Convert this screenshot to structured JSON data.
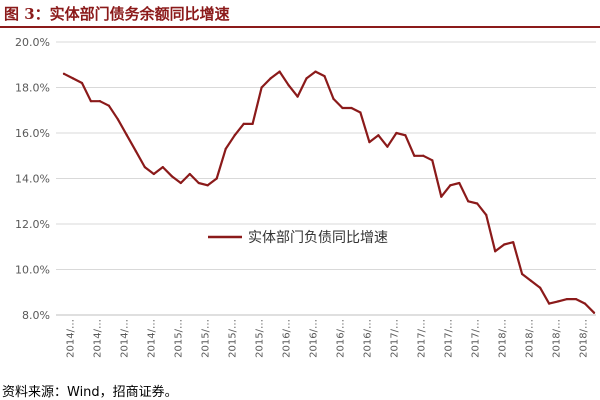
{
  "header": {
    "title": "图 3：实体部门债务余额同比增速"
  },
  "footer": {
    "source": "资料来源：Wind，招商证券。"
  },
  "chart_data": {
    "type": "line",
    "title": "",
    "xlabel": "",
    "ylabel": "",
    "ylim": [
      8,
      20
    ],
    "y_ticks": [
      "8.0%",
      "10.0%",
      "12.0%",
      "14.0%",
      "16.0%",
      "18.0%",
      "20.0%"
    ],
    "x_tick_labels": [
      "2014/…",
      "2014/…",
      "2014/…",
      "2014/…",
      "2015/…",
      "2015/…",
      "2015/…",
      "2015/…",
      "2016/…",
      "2016/…",
      "2016/…",
      "2016/…",
      "2017/…",
      "2017/…",
      "2017/…",
      "2017/…",
      "2018/…",
      "2018/…",
      "2018/…",
      "2018/…"
    ],
    "grid": "horizontal",
    "legend_position": "center-right",
    "line_color": "#8B1A1A",
    "series": [
      {
        "name": "实体部门负债同比增速",
        "values": [
          18.6,
          18.4,
          18.2,
          17.4,
          17.4,
          17.2,
          16.6,
          15.9,
          15.2,
          14.5,
          14.2,
          14.5,
          14.1,
          13.8,
          14.2,
          13.8,
          13.7,
          14.0,
          15.3,
          15.9,
          16.4,
          16.4,
          18.0,
          18.4,
          18.7,
          18.1,
          17.6,
          18.4,
          18.7,
          18.5,
          17.5,
          17.1,
          17.1,
          16.9,
          15.6,
          15.9,
          15.4,
          16.0,
          15.9,
          15.0,
          15.0,
          14.8,
          13.2,
          13.7,
          13.8,
          13.0,
          12.9,
          12.4,
          10.8,
          11.1,
          11.2,
          9.8,
          9.5,
          9.2,
          8.5,
          8.6,
          8.7,
          8.7,
          8.5,
          8.1
        ]
      }
    ]
  }
}
